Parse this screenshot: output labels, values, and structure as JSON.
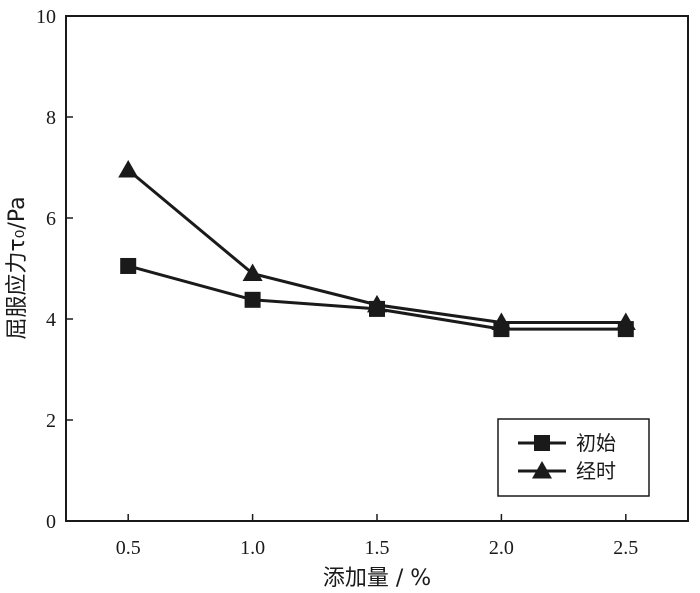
{
  "chart_data": {
    "type": "line",
    "x": [
      0.5,
      1.0,
      1.5,
      2.0,
      2.5
    ],
    "x_tick_labels": [
      "0.5",
      "1.0",
      "1.5",
      "2.0",
      "2.5"
    ],
    "xlim": [
      0.25,
      2.75
    ],
    "ylim": [
      0,
      10
    ],
    "y_ticks": [
      0,
      2,
      4,
      6,
      8,
      10
    ],
    "y_tick_labels": [
      "0",
      "2",
      "4",
      "6",
      "8",
      "10"
    ],
    "xlabel": "添加量 / %",
    "ylabel": "屈服应力τ₀/Pa",
    "grid": false,
    "legend_position": "bottom-right",
    "series": [
      {
        "name": "初始",
        "marker": "square",
        "color": "#1a1a1a",
        "values": [
          5.05,
          4.38,
          4.2,
          3.8,
          3.8
        ]
      },
      {
        "name": "经时",
        "marker": "triangle",
        "color": "#1a1a1a",
        "values": [
          6.95,
          4.9,
          4.28,
          3.93,
          3.93
        ]
      }
    ]
  }
}
